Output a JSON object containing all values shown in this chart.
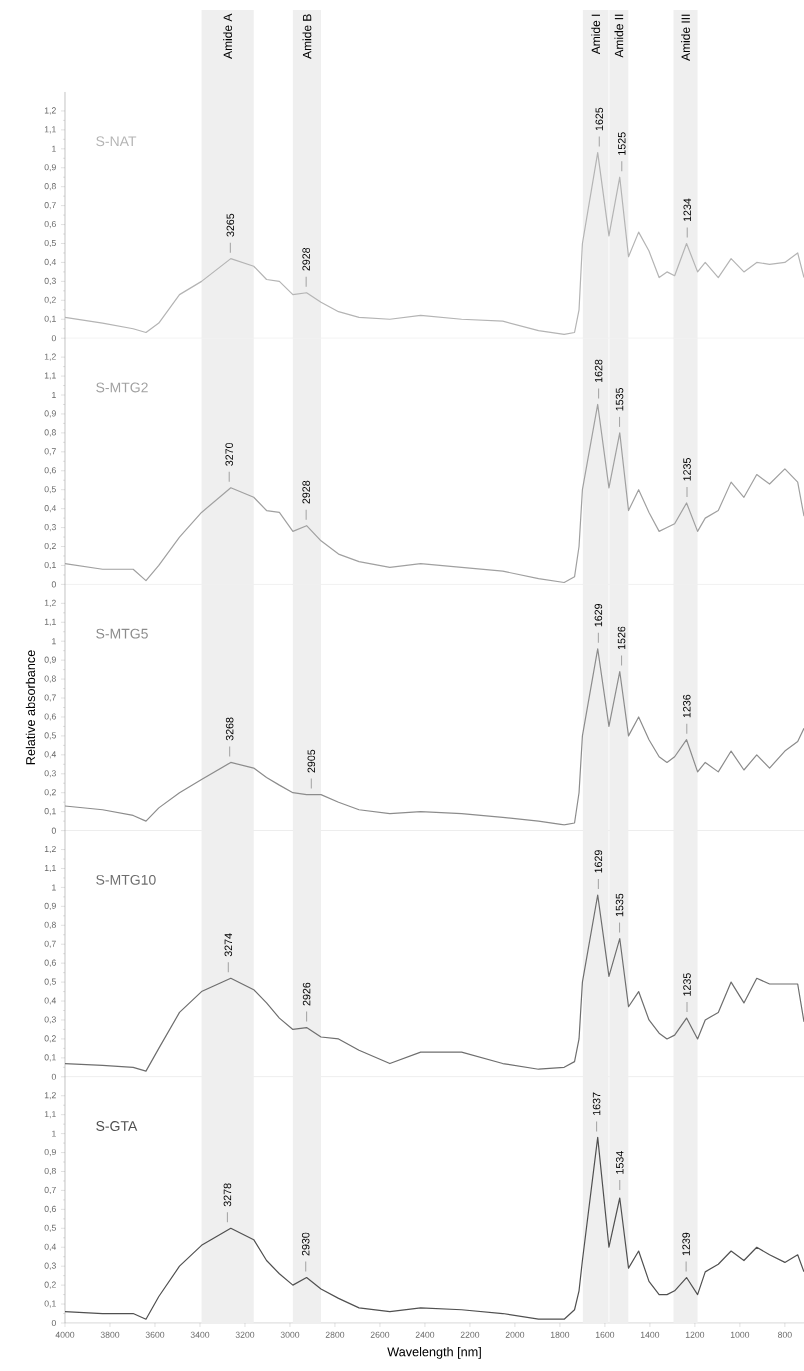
{
  "chart_data": [
    {
      "type": "line",
      "tick_labels": "y",
      "xlim": [
        4000,
        715
      ],
      "ylim": [
        0,
        1.3
      ],
      "xticks": [
        4000,
        3800,
        3600,
        3400,
        3200,
        3000,
        2800,
        2600,
        2400,
        2200,
        2000,
        1800,
        1600,
        1400,
        1200,
        1000,
        800
      ],
      "yticks": [
        0,
        {
          "value": 0.1,
          "label": "0,1"
        },
        {
          "value": 0.2,
          "label": "0,2"
        },
        {
          "value": 0.3,
          "label": "0,3"
        },
        {
          "value": 0.4,
          "label": "0,4"
        },
        {
          "value": 0.5,
          "label": "0,5"
        },
        {
          "value": 0.6,
          "label": "0,6"
        },
        {
          "value": 0.7,
          "label": "0,7"
        },
        {
          "value": 0.8,
          "label": "0,8"
        },
        {
          "value": 0.9,
          "label": "0,9"
        },
        1,
        {
          "value": 1.1,
          "label": "1,1"
        },
        {
          "value": 1.2,
          "label": "1,2"
        }
      ],
      "bands": [
        {
          "axis": "x",
          "from": 3393,
          "to": 3161,
          "label": "Amide A",
          "color": "#efefef"
        },
        {
          "axis": "x",
          "from": 2987,
          "to": 2862,
          "label": "Amide B",
          "color": "#efefef"
        },
        {
          "axis": "x",
          "from": 1698,
          "to": 1584,
          "label": "Amide I",
          "color": "#efefef"
        },
        {
          "axis": "x",
          "from": 1580,
          "to": 1496,
          "label": "Amide II",
          "color": "#efefef"
        },
        {
          "axis": "x",
          "from": 1295,
          "to": 1188,
          "label": "Amide III",
          "color": "#efefef"
        }
      ],
      "x": [
        4000,
        3833,
        3697,
        3640,
        3583,
        3491,
        3393,
        3263,
        3161,
        3104,
        3047,
        2987,
        2926,
        2862,
        2784,
        2693,
        2556,
        2419,
        2237,
        2054,
        1895,
        1781,
        1735,
        1715,
        1700,
        1632,
        1582,
        1534,
        1495,
        1450,
        1404,
        1359,
        1324,
        1290,
        1237,
        1188,
        1154,
        1096,
        1039,
        982,
        925,
        868,
        800,
        743,
        715
      ],
      "series": [
        {
          "name": "S-NAT",
          "color": "#b4b4b4",
          "values": [
            0.11,
            0.08,
            0.05,
            0.03,
            0.08,
            0.23,
            0.3,
            0.42,
            0.38,
            0.31,
            0.3,
            0.23,
            0.24,
            0.19,
            0.14,
            0.11,
            0.1,
            0.12,
            0.1,
            0.09,
            0.04,
            0.02,
            0.03,
            0.15,
            0.5,
            0.98,
            0.54,
            0.85,
            0.43,
            0.56,
            0.46,
            0.32,
            0.35,
            0.33,
            0.5,
            0.35,
            0.4,
            0.32,
            0.42,
            0.35,
            0.4,
            0.39,
            0.4,
            0.45,
            0.32
          ]
        }
      ],
      "annotations": [
        {
          "text": "3265",
          "x": 3265,
          "y": 0.42
        },
        {
          "text": "2928",
          "x": 2928,
          "y": 0.24
        },
        {
          "text": "1625",
          "x": 1625,
          "y": 0.98
        },
        {
          "text": "1525",
          "x": 1525,
          "y": 0.85
        },
        {
          "text": "1234",
          "x": 1234,
          "y": 0.5
        }
      ]
    },
    {
      "type": "line",
      "tick_labels": "y",
      "xlim": [
        4000,
        715
      ],
      "ylim": [
        0,
        1.3
      ],
      "xticks": [
        4000,
        3800,
        3600,
        3400,
        3200,
        3000,
        2800,
        2600,
        2400,
        2200,
        2000,
        1800,
        1600,
        1400,
        1200,
        1000,
        800
      ],
      "yticks": [
        0,
        {
          "value": 0.1,
          "label": "0,1"
        },
        {
          "value": 0.2,
          "label": "0,2"
        },
        {
          "value": 0.3,
          "label": "0,3"
        },
        {
          "value": 0.4,
          "label": "0,4"
        },
        {
          "value": 0.5,
          "label": "0,5"
        },
        {
          "value": 0.6,
          "label": "0,6"
        },
        {
          "value": 0.7,
          "label": "0,7"
        },
        {
          "value": 0.8,
          "label": "0,8"
        },
        {
          "value": 0.9,
          "label": "0,9"
        },
        1,
        {
          "value": 1.1,
          "label": "1,1"
        },
        {
          "value": 1.2,
          "label": "1,2"
        }
      ],
      "bands": [
        {
          "axis": "x",
          "from": 3393,
          "to": 3161,
          "color": "#efefef"
        },
        {
          "axis": "x",
          "from": 2987,
          "to": 2862,
          "color": "#efefef"
        },
        {
          "axis": "x",
          "from": 1698,
          "to": 1584,
          "color": "#efefef"
        },
        {
          "axis": "x",
          "from": 1580,
          "to": 1496,
          "color": "#efefef"
        },
        {
          "axis": "x",
          "from": 1295,
          "to": 1188,
          "color": "#efefef"
        }
      ],
      "x": [
        4000,
        3833,
        3697,
        3640,
        3583,
        3491,
        3393,
        3263,
        3161,
        3104,
        3047,
        2987,
        2926,
        2862,
        2784,
        2693,
        2556,
        2419,
        2237,
        2054,
        1895,
        1781,
        1735,
        1715,
        1700,
        1632,
        1582,
        1534,
        1495,
        1450,
        1404,
        1359,
        1324,
        1290,
        1237,
        1188,
        1154,
        1096,
        1039,
        982,
        925,
        868,
        800,
        743,
        715
      ],
      "series": [
        {
          "name": "S-MTG2",
          "color": "#a0a0a0",
          "values": [
            0.11,
            0.08,
            0.08,
            0.02,
            0.1,
            0.25,
            0.38,
            0.51,
            0.46,
            0.39,
            0.38,
            0.28,
            0.31,
            0.23,
            0.16,
            0.12,
            0.09,
            0.11,
            0.09,
            0.07,
            0.03,
            0.01,
            0.04,
            0.2,
            0.5,
            0.95,
            0.51,
            0.8,
            0.39,
            0.5,
            0.38,
            0.28,
            0.3,
            0.32,
            0.43,
            0.28,
            0.35,
            0.39,
            0.54,
            0.46,
            0.58,
            0.53,
            0.61,
            0.54,
            0.36
          ]
        }
      ],
      "annotations": [
        {
          "text": "3270",
          "x": 3270,
          "y": 0.51
        },
        {
          "text": "2928",
          "x": 2928,
          "y": 0.31
        },
        {
          "text": "1628",
          "x": 1628,
          "y": 0.95
        },
        {
          "text": "1535",
          "x": 1535,
          "y": 0.8
        },
        {
          "text": "1235",
          "x": 1235,
          "y": 0.43
        }
      ]
    },
    {
      "type": "line",
      "tick_labels": "y",
      "ylabel": "Relative absorbance",
      "xlim": [
        4000,
        715
      ],
      "ylim": [
        0,
        1.3
      ],
      "xticks": [
        4000,
        3800,
        3600,
        3400,
        3200,
        3000,
        2800,
        2600,
        2400,
        2200,
        2000,
        1800,
        1600,
        1400,
        1200,
        1000,
        800
      ],
      "yticks": [
        0,
        {
          "value": 0.1,
          "label": "0,1"
        },
        {
          "value": 0.2,
          "label": "0,2"
        },
        {
          "value": 0.3,
          "label": "0,3"
        },
        {
          "value": 0.4,
          "label": "0,4"
        },
        {
          "value": 0.5,
          "label": "0,5"
        },
        {
          "value": 0.6,
          "label": "0,6"
        },
        {
          "value": 0.7,
          "label": "0,7"
        },
        {
          "value": 0.8,
          "label": "0,8"
        },
        {
          "value": 0.9,
          "label": "0,9"
        },
        1,
        {
          "value": 1.1,
          "label": "1,1"
        },
        {
          "value": 1.2,
          "label": "1,2"
        }
      ],
      "bands": [
        {
          "axis": "x",
          "from": 3393,
          "to": 3161,
          "color": "#efefef"
        },
        {
          "axis": "x",
          "from": 2987,
          "to": 2862,
          "color": "#efefef"
        },
        {
          "axis": "x",
          "from": 1698,
          "to": 1584,
          "color": "#efefef"
        },
        {
          "axis": "x",
          "from": 1580,
          "to": 1496,
          "color": "#efefef"
        },
        {
          "axis": "x",
          "from": 1295,
          "to": 1188,
          "color": "#efefef"
        }
      ],
      "x": [
        4000,
        3833,
        3697,
        3640,
        3583,
        3491,
        3393,
        3263,
        3161,
        3104,
        3047,
        2987,
        2926,
        2862,
        2784,
        2693,
        2556,
        2419,
        2237,
        2054,
        1895,
        1781,
        1735,
        1715,
        1700,
        1632,
        1582,
        1534,
        1495,
        1450,
        1404,
        1359,
        1324,
        1290,
        1237,
        1188,
        1154,
        1096,
        1039,
        982,
        925,
        868,
        800,
        743,
        715
      ],
      "series": [
        {
          "name": "S-MTG5",
          "color": "#8c8c8c",
          "values": [
            0.13,
            0.11,
            0.08,
            0.05,
            0.12,
            0.2,
            0.27,
            0.36,
            0.33,
            0.28,
            0.24,
            0.2,
            0.19,
            0.19,
            0.15,
            0.11,
            0.09,
            0.1,
            0.09,
            0.07,
            0.05,
            0.03,
            0.04,
            0.2,
            0.5,
            0.96,
            0.55,
            0.84,
            0.5,
            0.6,
            0.48,
            0.39,
            0.36,
            0.39,
            0.48,
            0.31,
            0.36,
            0.31,
            0.42,
            0.32,
            0.4,
            0.33,
            0.42,
            0.47,
            0.54
          ]
        }
      ],
      "annotations": [
        {
          "text": "3268",
          "x": 3268,
          "y": 0.36
        },
        {
          "text": "2905",
          "x": 2905,
          "y": 0.19
        },
        {
          "text": "1629",
          "x": 1629,
          "y": 0.96
        },
        {
          "text": "1526",
          "x": 1526,
          "y": 0.84
        },
        {
          "text": "1236",
          "x": 1236,
          "y": 0.48
        }
      ]
    },
    {
      "type": "line",
      "tick_labels": "y",
      "xlim": [
        4000,
        715
      ],
      "ylim": [
        0,
        1.3
      ],
      "xticks": [
        4000,
        3800,
        3600,
        3400,
        3200,
        3000,
        2800,
        2600,
        2400,
        2200,
        2000,
        1800,
        1600,
        1400,
        1200,
        1000,
        800
      ],
      "yticks": [
        0,
        {
          "value": 0.1,
          "label": "0,1"
        },
        {
          "value": 0.2,
          "label": "0,2"
        },
        {
          "value": 0.3,
          "label": "0,3"
        },
        {
          "value": 0.4,
          "label": "0,4"
        },
        {
          "value": 0.5,
          "label": "0,5"
        },
        {
          "value": 0.6,
          "label": "0,6"
        },
        {
          "value": 0.7,
          "label": "0,7"
        },
        {
          "value": 0.8,
          "label": "0,8"
        },
        {
          "value": 0.9,
          "label": "0,9"
        },
        1,
        {
          "value": 1.1,
          "label": "1,1"
        },
        {
          "value": 1.2,
          "label": "1,2"
        }
      ],
      "bands": [
        {
          "axis": "x",
          "from": 3393,
          "to": 3161,
          "color": "#efefef"
        },
        {
          "axis": "x",
          "from": 2987,
          "to": 2862,
          "color": "#efefef"
        },
        {
          "axis": "x",
          "from": 1698,
          "to": 1584,
          "color": "#efefef"
        },
        {
          "axis": "x",
          "from": 1580,
          "to": 1496,
          "color": "#efefef"
        },
        {
          "axis": "x",
          "from": 1295,
          "to": 1188,
          "color": "#efefef"
        }
      ],
      "x": [
        4000,
        3833,
        3697,
        3640,
        3583,
        3491,
        3393,
        3263,
        3161,
        3104,
        3047,
        2987,
        2926,
        2862,
        2784,
        2693,
        2556,
        2419,
        2237,
        2054,
        1895,
        1781,
        1735,
        1715,
        1700,
        1632,
        1582,
        1534,
        1495,
        1450,
        1404,
        1359,
        1324,
        1290,
        1237,
        1188,
        1154,
        1096,
        1039,
        982,
        925,
        868,
        800,
        743,
        715
      ],
      "series": [
        {
          "name": "S-MTG10",
          "color": "#6e6e6e",
          "values": [
            0.07,
            0.06,
            0.05,
            0.03,
            0.15,
            0.34,
            0.45,
            0.52,
            0.46,
            0.39,
            0.31,
            0.25,
            0.26,
            0.21,
            0.2,
            0.14,
            0.07,
            0.13,
            0.13,
            0.07,
            0.04,
            0.05,
            0.08,
            0.2,
            0.5,
            0.96,
            0.53,
            0.73,
            0.37,
            0.45,
            0.3,
            0.23,
            0.2,
            0.22,
            0.31,
            0.2,
            0.3,
            0.34,
            0.5,
            0.39,
            0.52,
            0.49,
            0.49,
            0.49,
            0.29
          ]
        }
      ],
      "annotations": [
        {
          "text": "3274",
          "x": 3274,
          "y": 0.52
        },
        {
          "text": "2926",
          "x": 2926,
          "y": 0.26
        },
        {
          "text": "1629",
          "x": 1629,
          "y": 0.96
        },
        {
          "text": "1535",
          "x": 1535,
          "y": 0.73
        },
        {
          "text": "1235",
          "x": 1235,
          "y": 0.31
        }
      ]
    },
    {
      "type": "line",
      "xlabel": "Wavelength [nm]",
      "xlim": [
        4000,
        715
      ],
      "ylim": [
        0,
        1.3
      ],
      "xticks": [
        4000,
        3800,
        3600,
        3400,
        3200,
        3000,
        2800,
        2600,
        2400,
        2200,
        2000,
        1800,
        1600,
        1400,
        1200,
        1000,
        800
      ],
      "yticks": [
        0,
        {
          "value": 0.1,
          "label": "0,1"
        },
        {
          "value": 0.2,
          "label": "0,2"
        },
        {
          "value": 0.3,
          "label": "0,3"
        },
        {
          "value": 0.4,
          "label": "0,4"
        },
        {
          "value": 0.5,
          "label": "0,5"
        },
        {
          "value": 0.6,
          "label": "0,6"
        },
        {
          "value": 0.7,
          "label": "0,7"
        },
        {
          "value": 0.8,
          "label": "0,8"
        },
        {
          "value": 0.9,
          "label": "0,9"
        },
        1,
        {
          "value": 1.1,
          "label": "1,1"
        },
        {
          "value": 1.2,
          "label": "1,2"
        }
      ],
      "bands": [
        {
          "axis": "x",
          "from": 3393,
          "to": 3161,
          "color": "#efefef"
        },
        {
          "axis": "x",
          "from": 2987,
          "to": 2862,
          "color": "#efefef"
        },
        {
          "axis": "x",
          "from": 1698,
          "to": 1584,
          "color": "#efefef"
        },
        {
          "axis": "x",
          "from": 1580,
          "to": 1496,
          "color": "#efefef"
        },
        {
          "axis": "x",
          "from": 1295,
          "to": 1188,
          "color": "#efefef"
        }
      ],
      "x": [
        4000,
        3833,
        3697,
        3640,
        3583,
        3491,
        3393,
        3263,
        3161,
        3104,
        3047,
        2987,
        2926,
        2862,
        2784,
        2693,
        2556,
        2419,
        2237,
        2054,
        1895,
        1781,
        1735,
        1715,
        1700,
        1632,
        1582,
        1534,
        1495,
        1450,
        1404,
        1359,
        1324,
        1290,
        1237,
        1188,
        1154,
        1096,
        1039,
        982,
        925,
        868,
        800,
        743,
        715
      ],
      "series": [
        {
          "name": "S-GTA",
          "color": "#505050",
          "values": [
            0.06,
            0.05,
            0.05,
            0.02,
            0.14,
            0.3,
            0.41,
            0.5,
            0.44,
            0.33,
            0.26,
            0.2,
            0.24,
            0.18,
            0.13,
            0.08,
            0.06,
            0.08,
            0.07,
            0.05,
            0.02,
            0.02,
            0.07,
            0.17,
            0.33,
            0.98,
            0.4,
            0.66,
            0.29,
            0.38,
            0.22,
            0.15,
            0.15,
            0.17,
            0.24,
            0.15,
            0.27,
            0.31,
            0.38,
            0.33,
            0.4,
            0.36,
            0.32,
            0.36,
            0.27
          ]
        }
      ],
      "annotations": [
        {
          "text": "3278",
          "x": 3278,
          "y": 0.5
        },
        {
          "text": "2930",
          "x": 2930,
          "y": 0.24
        },
        {
          "text": "1637",
          "x": 1637,
          "y": 0.98
        },
        {
          "text": "1534",
          "x": 1534,
          "y": 0.67
        },
        {
          "text": "1239",
          "x": 1239,
          "y": 0.24
        }
      ]
    }
  ]
}
